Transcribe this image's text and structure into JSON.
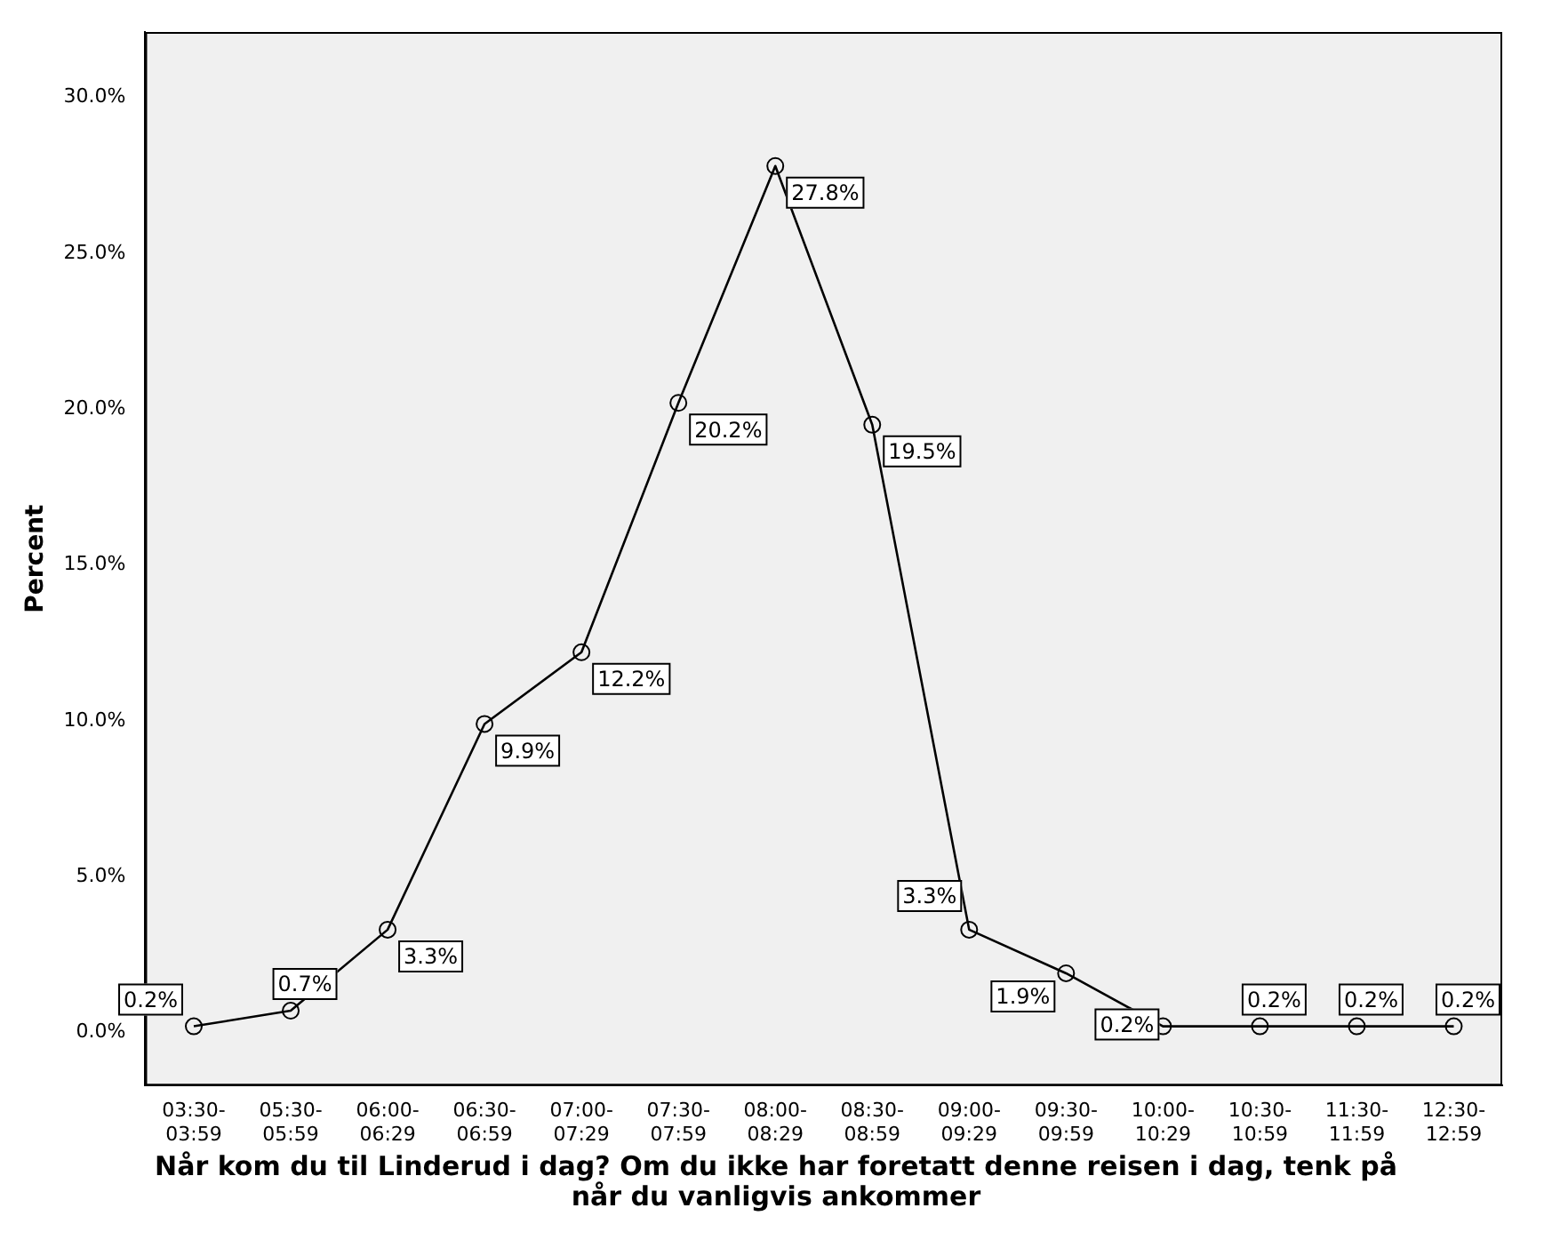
{
  "chart_data": {
    "type": "line",
    "xlabel": "Når kom du til Linderud i dag? Om du ikke har foretatt denne reisen i dag, tenk på når du vanligvis ankommer",
    "ylabel": "Percent",
    "categories": [
      "03:30-03:59",
      "05:30-05:59",
      "06:00-06:29",
      "06:30-06:59",
      "07:00-07:29",
      "07:30-07:59",
      "08:00-08:29",
      "08:30-08:59",
      "09:00-09:29",
      "09:30-09:59",
      "10:00-10:29",
      "10:30-10:59",
      "11:30-11:59",
      "12:30-12:59"
    ],
    "series": [
      {
        "color": "#000000",
        "values": [
          0.2,
          0.7,
          3.3,
          9.9,
          12.2,
          20.2,
          27.8,
          19.5,
          3.3,
          1.9,
          0.2,
          0.2,
          0.2,
          0.2
        ],
        "value_labels": [
          "0.2%",
          "0.7%",
          "3.3%",
          "9.9%",
          "12.2%",
          "20.2%",
          "27.8%",
          "19.5%",
          "3.3%",
          "1.9%",
          "0.2%",
          "0.2%",
          "0.2%",
          "0.2%"
        ]
      }
    ],
    "ylim": [
      -1.7,
      32.1
    ],
    "yticks": [
      {
        "value": 0,
        "label": "0.0%"
      },
      {
        "value": 5,
        "label": "5.0%"
      },
      {
        "value": 10,
        "label": "10.0%"
      },
      {
        "value": 15,
        "label": "15.0%"
      },
      {
        "value": 20,
        "label": "20.0%"
      },
      {
        "value": 25,
        "label": "25.0%"
      },
      {
        "value": 30,
        "label": "30.0%"
      }
    ],
    "grid": false,
    "legend": false,
    "marker": "circle",
    "line_style": "solid"
  }
}
